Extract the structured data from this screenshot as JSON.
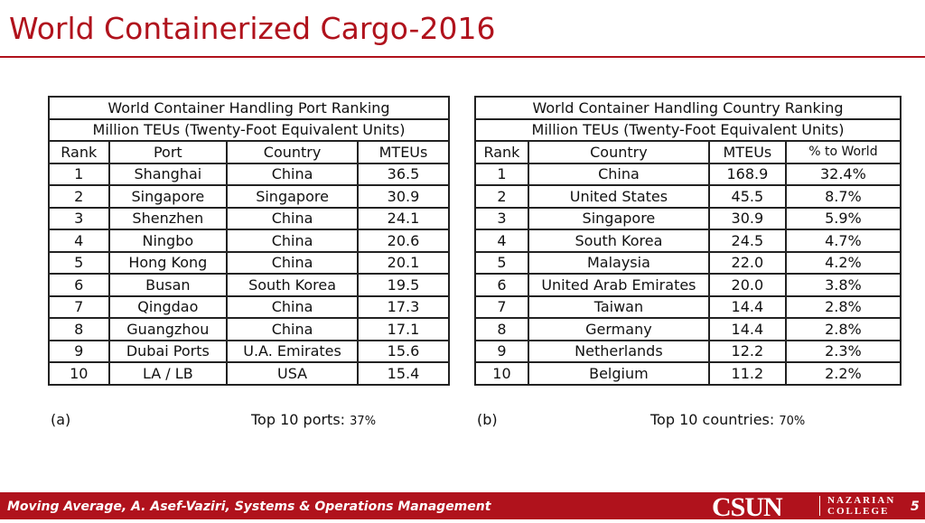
{
  "title": "World Containerized Cargo-2016",
  "port_table": {
    "title": "World Container Handling Port Ranking",
    "subtitle": "Million TEUs (Twenty-Foot Equivalent Units)",
    "header": [
      "Rank",
      "Port",
      "Country",
      "MTEUs"
    ],
    "rows": [
      [
        "1",
        "Shanghai",
        "China",
        "36.5"
      ],
      [
        "2",
        "Singapore",
        "Singapore",
        "30.9"
      ],
      [
        "3",
        "Shenzhen",
        "China",
        "24.1"
      ],
      [
        "4",
        "Ningbo",
        "China",
        "20.6"
      ],
      [
        "5",
        "Hong Kong",
        "China",
        "20.1"
      ],
      [
        "6",
        "Busan",
        "South Korea",
        "19.5"
      ],
      [
        "7",
        "Qingdao",
        "China",
        "17.3"
      ],
      [
        "8",
        "Guangzhou",
        "China",
        "17.1"
      ],
      [
        "9",
        "Dubai Ports",
        "U.A. Emirates",
        "15.6"
      ],
      [
        "10",
        "LA / LB",
        "USA",
        "15.4"
      ]
    ],
    "caption": "(a)",
    "summary_label": "Top 10 ports:",
    "summary_value": "37%"
  },
  "country_table": {
    "title": "World Container Handling Country  Ranking",
    "subtitle": "Million TEUs (Twenty-Foot Equivalent Units)",
    "header": [
      "Rank",
      "Country",
      "MTEUs",
      "% to World"
    ],
    "rows": [
      [
        "1",
        "China",
        "168.9",
        "32.4%"
      ],
      [
        "2",
        "United States",
        "45.5",
        "8.7%"
      ],
      [
        "3",
        "Singapore",
        "30.9",
        "5.9%"
      ],
      [
        "4",
        "South Korea",
        "24.5",
        "4.7%"
      ],
      [
        "5",
        "Malaysia",
        "22.0",
        "4.2%"
      ],
      [
        "6",
        "United Arab Emirates",
        "20.0",
        "3.8%"
      ],
      [
        "7",
        "Taiwan",
        "14.4",
        "2.8%"
      ],
      [
        "8",
        "Germany",
        "14.4",
        "2.8%"
      ],
      [
        "9",
        "Netherlands",
        "12.2",
        "2.3%"
      ],
      [
        "10",
        "Belgium",
        "11.2",
        "2.2%"
      ]
    ],
    "caption": "(b)",
    "summary_label": "Top 10 countries:",
    "summary_value": "70%"
  },
  "footer": {
    "text": "Moving Average, A. Asef-Vaziri, Systems & Operations Management",
    "logo": "CSUN",
    "college_line1": "NAZARIAN",
    "college_line2": "COLLEGE",
    "page": "5"
  }
}
